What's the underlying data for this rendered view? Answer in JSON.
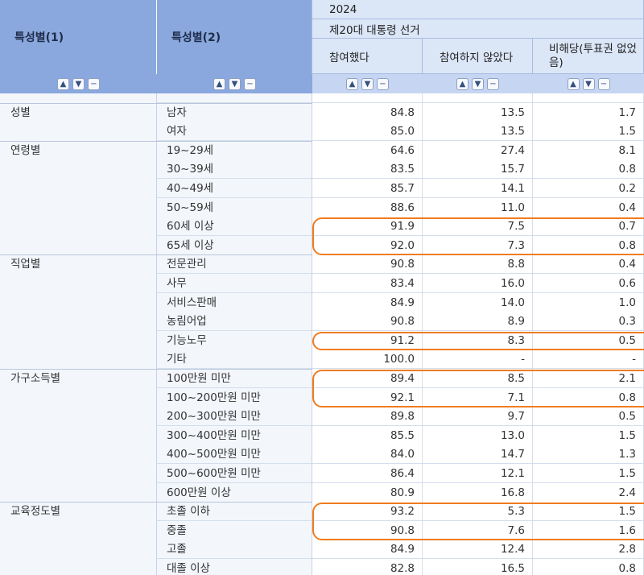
{
  "header": {
    "col1": "특성별(1)",
    "col2": "특성별(2)",
    "year": "2024",
    "election": "제20대 대통령 선거",
    "val_cols": [
      "참여했다",
      "참여하지 않았다",
      "비해당(투표권 없었음)"
    ]
  },
  "control_icons": [
    "chevron-up-icon",
    "chevron-down-icon",
    "minus-icon"
  ],
  "rows": [
    {
      "cat": "",
      "sub": "",
      "v": [
        "",
        "",
        ""
      ]
    },
    {
      "cat": "성별",
      "sub": "남자",
      "v": [
        "84.8",
        "13.5",
        "1.7"
      ]
    },
    {
      "cat": "",
      "sub": "여자",
      "v": [
        "85.0",
        "13.5",
        "1.5"
      ]
    },
    {
      "cat": "연령별",
      "sub": "19~29세",
      "v": [
        "64.6",
        "27.4",
        "8.1"
      ]
    },
    {
      "cat": "",
      "sub": "30~39세",
      "v": [
        "83.5",
        "15.7",
        "0.8"
      ]
    },
    {
      "cat": "",
      "sub": "40~49세",
      "v": [
        "85.7",
        "14.1",
        "0.2"
      ]
    },
    {
      "cat": "",
      "sub": "50~59세",
      "v": [
        "88.6",
        "11.0",
        "0.4"
      ]
    },
    {
      "cat": "",
      "sub": "60세 이상",
      "v": [
        "91.9",
        "7.5",
        "0.7"
      ]
    },
    {
      "cat": "",
      "sub": "65세 이상",
      "v": [
        "92.0",
        "7.3",
        "0.8"
      ]
    },
    {
      "cat": "직업별",
      "sub": "전문관리",
      "v": [
        "90.8",
        "8.8",
        "0.4"
      ]
    },
    {
      "cat": "",
      "sub": "사무",
      "v": [
        "83.4",
        "16.0",
        "0.6"
      ]
    },
    {
      "cat": "",
      "sub": "서비스판매",
      "v": [
        "84.9",
        "14.0",
        "1.0"
      ]
    },
    {
      "cat": "",
      "sub": "농림어업",
      "v": [
        "90.8",
        "8.9",
        "0.3"
      ]
    },
    {
      "cat": "",
      "sub": "기능노무",
      "v": [
        "91.2",
        "8.3",
        "0.5"
      ]
    },
    {
      "cat": "",
      "sub": "기타",
      "v": [
        "100.0",
        "-",
        "-"
      ]
    },
    {
      "cat": "가구소득별",
      "sub": "100만원 미만",
      "v": [
        "89.4",
        "8.5",
        "2.1"
      ]
    },
    {
      "cat": "",
      "sub": "100~200만원 미만",
      "v": [
        "92.1",
        "7.1",
        "0.8"
      ]
    },
    {
      "cat": "",
      "sub": "200~300만원 미만",
      "v": [
        "89.8",
        "9.7",
        "0.5"
      ]
    },
    {
      "cat": "",
      "sub": "300~400만원 미만",
      "v": [
        "85.5",
        "13.0",
        "1.5"
      ]
    },
    {
      "cat": "",
      "sub": "400~500만원 미만",
      "v": [
        "84.0",
        "14.7",
        "1.3"
      ]
    },
    {
      "cat": "",
      "sub": "500~600만원 미만",
      "v": [
        "86.4",
        "12.1",
        "1.5"
      ]
    },
    {
      "cat": "",
      "sub": "600만원 이상",
      "v": [
        "80.9",
        "16.8",
        "2.4"
      ]
    },
    {
      "cat": "교육정도별",
      "sub": "초졸 이하",
      "v": [
        "93.2",
        "5.3",
        "1.5"
      ]
    },
    {
      "cat": "",
      "sub": "중졸",
      "v": [
        "90.8",
        "7.6",
        "1.6"
      ]
    },
    {
      "cat": "",
      "sub": "고졸",
      "v": [
        "84.9",
        "12.4",
        "2.8"
      ]
    },
    {
      "cat": "",
      "sub": "대졸 이상",
      "v": [
        "82.8",
        "16.5",
        "0.8"
      ]
    }
  ],
  "highlight_color": "#f07c21",
  "highlight_groups": [
    [
      7,
      8
    ],
    [
      13,
      13
    ],
    [
      15,
      16
    ],
    [
      22,
      23
    ]
  ]
}
